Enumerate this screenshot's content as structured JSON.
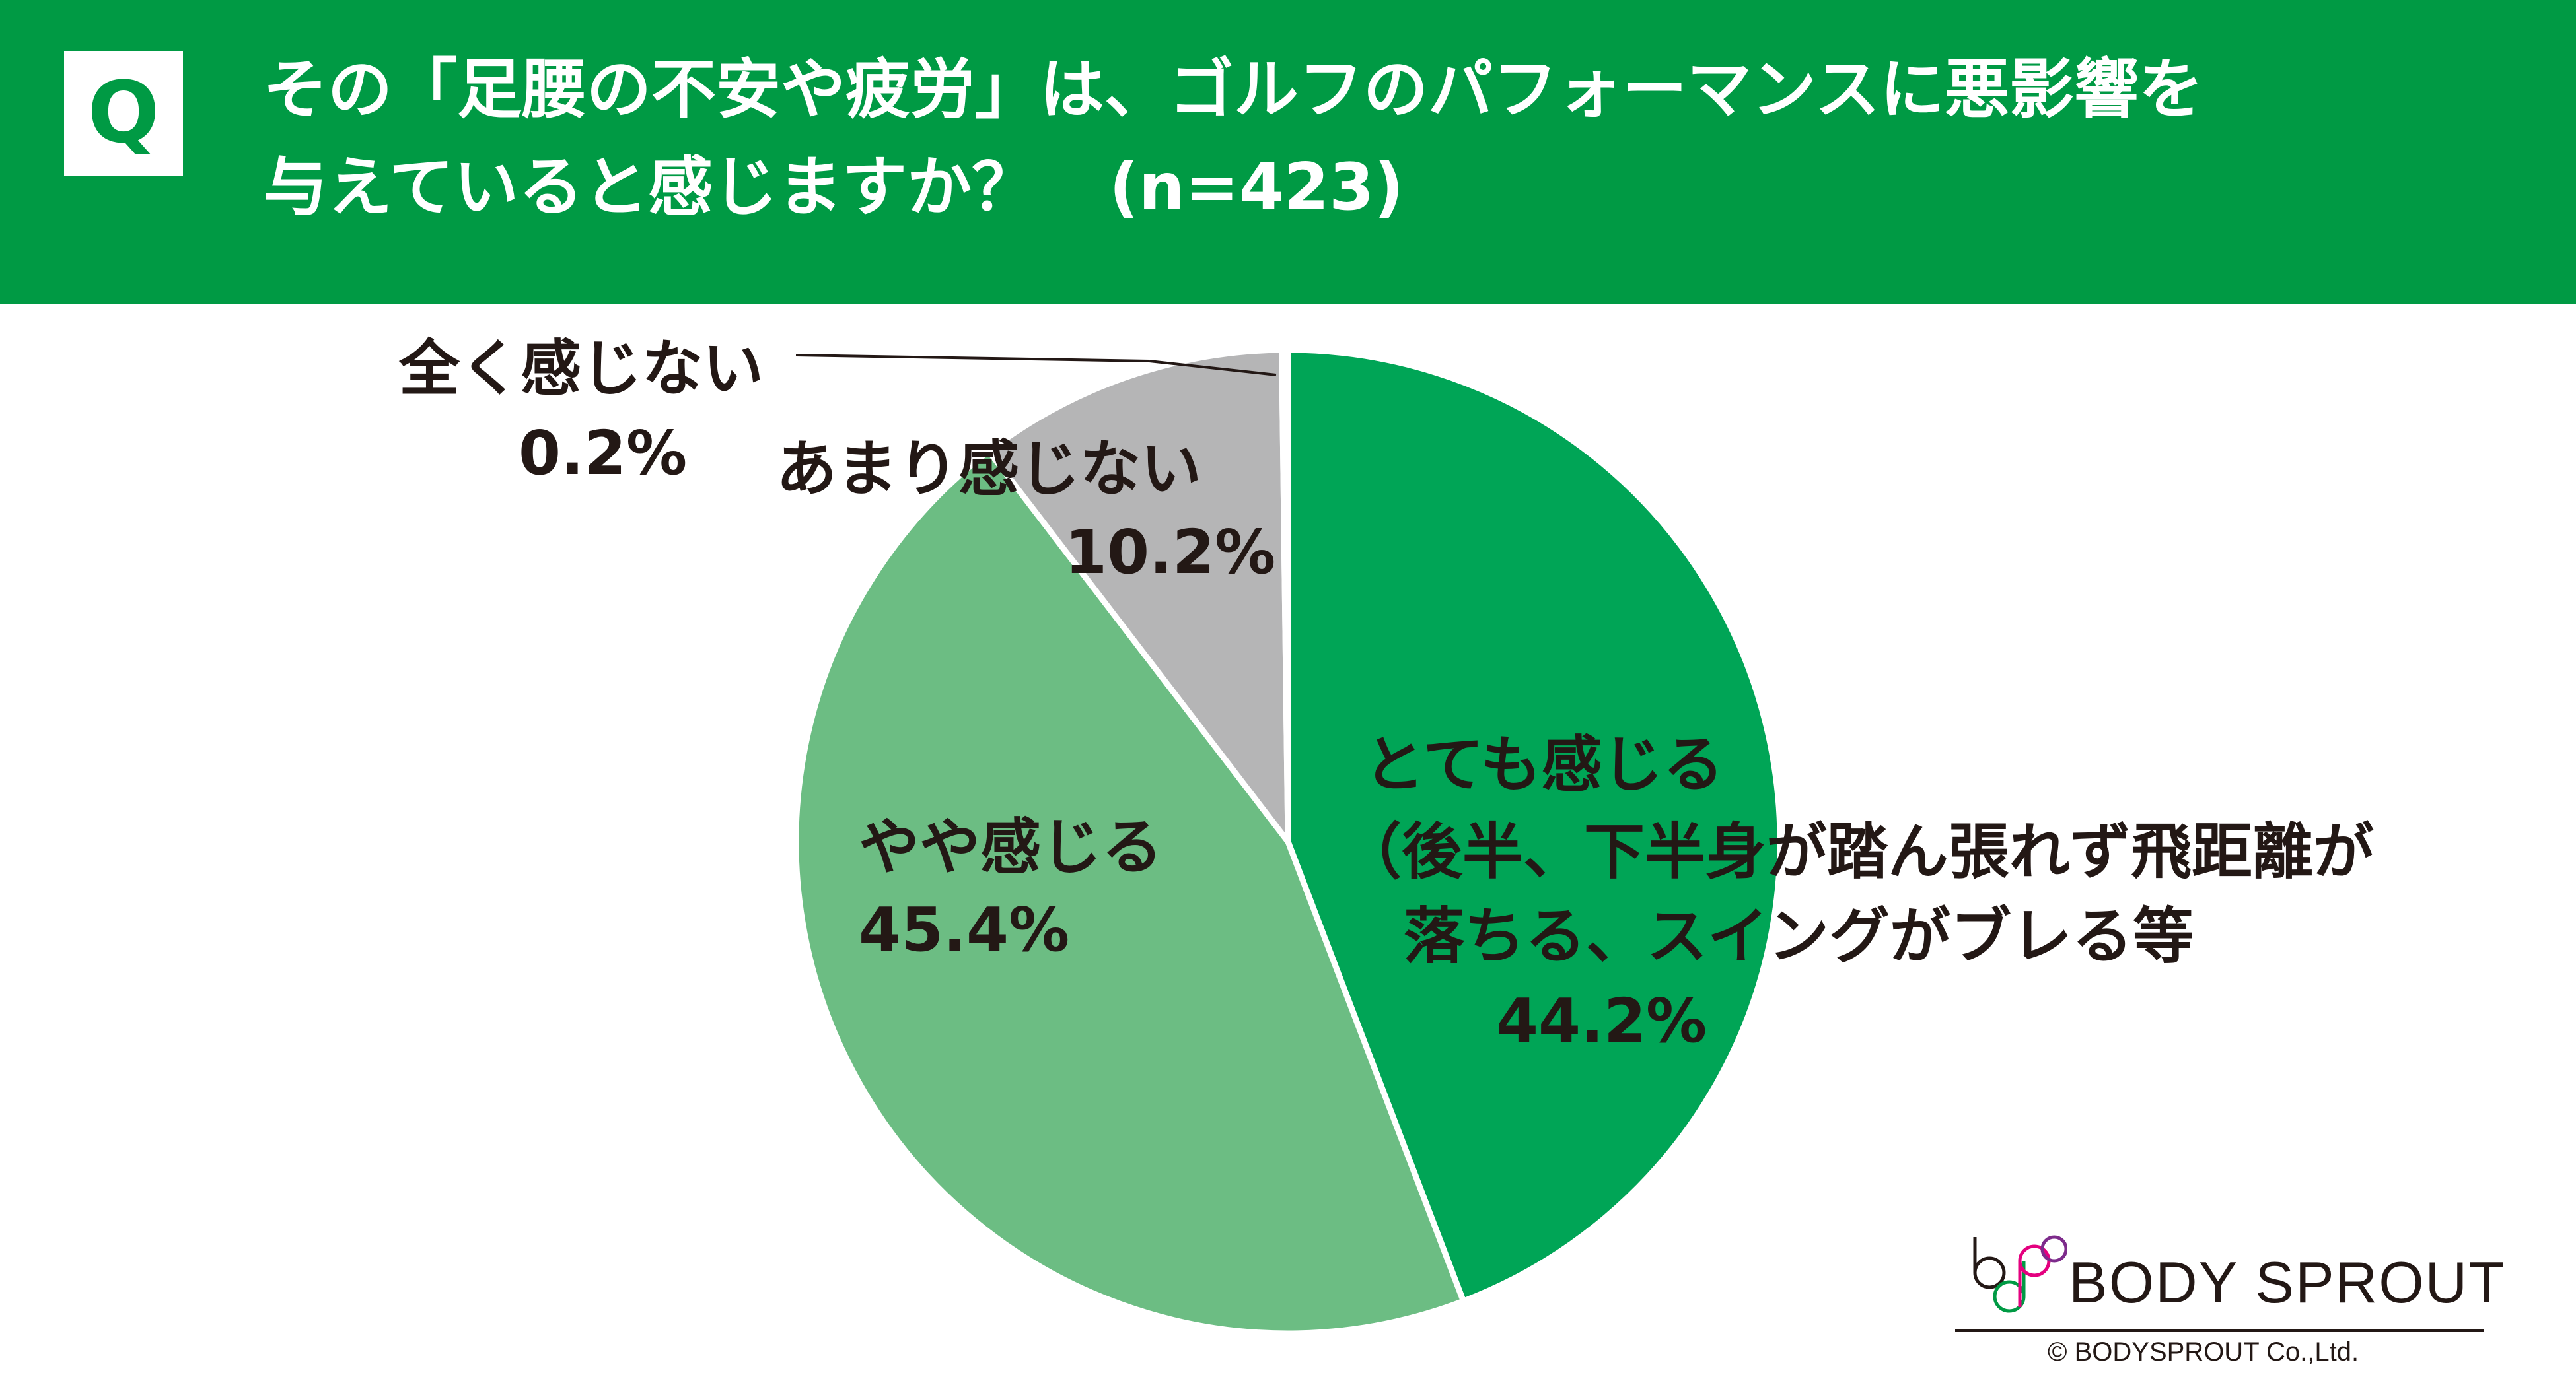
{
  "header": {
    "q_label": "Q",
    "question_line1": "その「足腰の不安や疲労」は、ゴルフのパフォーマンスに悪影響を",
    "question_line2": "与えていると感じますか？",
    "sample_size": "(n=423)"
  },
  "chart_data": {
    "type": "pie",
    "title": "その「足腰の不安や疲労」は、ゴルフのパフォーマンスに悪影響を与えていると感じますか？ (n=423)",
    "start": "top",
    "direction": "clockwise",
    "slices": [
      {
        "label": "とても感じる",
        "sublabel_1": "（後半、下半身が踏ん張れず飛距離が",
        "sublabel_2": "落ちる、スイングがブレる等",
        "value": 44.2,
        "value_label": "44.2%",
        "color": "#00a556"
      },
      {
        "label": "やや感じる",
        "value": 45.4,
        "value_label": "45.4%",
        "color": "#6cbd83"
      },
      {
        "label": "あまり感じない",
        "value": 10.2,
        "value_label": "10.2%",
        "color": "#b5b5b6"
      },
      {
        "label": "全く感じない",
        "value": 0.2,
        "value_label": "0.2%",
        "color": "#414141"
      }
    ]
  },
  "logo": {
    "brand": "BODY SPROUT",
    "copyright": "© BODYSPROUT Co.,Ltd."
  }
}
